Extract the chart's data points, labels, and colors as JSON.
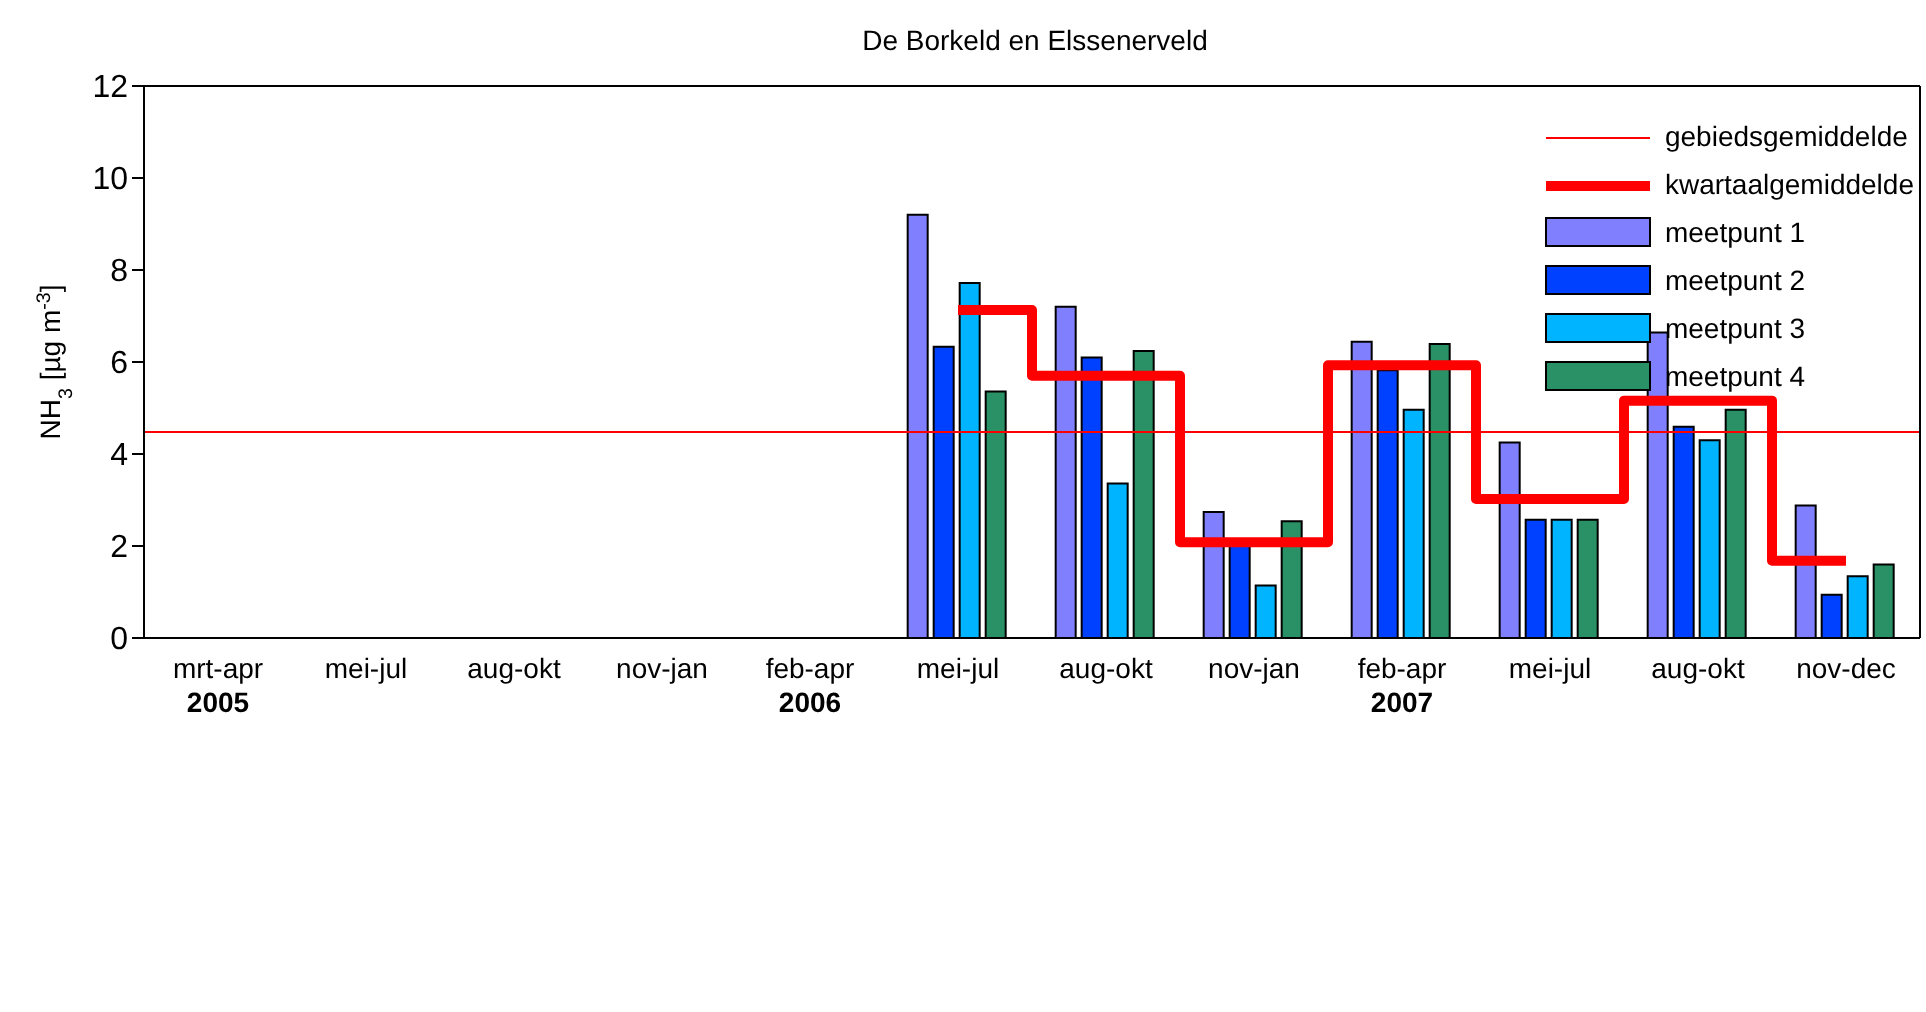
{
  "chart_data": {
    "type": "bar",
    "title": "De Borkeld en Elssenerveld",
    "ylabel": "NH$_{3}$ [µg m$^{-3}$]",
    "categories": [
      "mrt-apr\n2005",
      "mei-jul",
      "aug-okt",
      "nov-jan",
      "feb-apr\n2006",
      "mei-jul",
      "aug-okt",
      "nov-jan",
      "feb-apr\n2007",
      "mei-jul",
      "aug-okt",
      "nov-dec"
    ],
    "series": [
      {
        "name": "kwartaalgemiddelde",
        "type": "step",
        "color": "#ff0000",
        "values": [
          null,
          null,
          null,
          null,
          null,
          7.13,
          5.7,
          2.08,
          5.93,
          3.02,
          5.16,
          1.68
        ]
      },
      {
        "name": "meetpunt 1",
        "color": "#8080ff",
        "values": [
          null,
          null,
          null,
          null,
          null,
          9.2,
          7.2,
          2.74,
          6.44,
          4.25,
          6.64,
          2.88
        ]
      },
      {
        "name": "meetpunt 2",
        "color": "#0040ff",
        "values": [
          null,
          null,
          null,
          null,
          null,
          6.33,
          6.1,
          2.1,
          5.82,
          2.57,
          4.59,
          0.94
        ]
      },
      {
        "name": "meetpunt 3",
        "color": "#00b4ff",
        "values": [
          null,
          null,
          null,
          null,
          null,
          7.72,
          3.36,
          1.14,
          4.96,
          2.57,
          4.3,
          1.34
        ]
      },
      {
        "name": "meetpunt 4",
        "color": "#2a9065",
        "values": [
          null,
          null,
          null,
          null,
          null,
          5.36,
          6.24,
          2.54,
          6.39,
          2.57,
          4.96,
          1.6
        ]
      }
    ],
    "ref_lines": [
      {
        "axis": "y",
        "value": 4.48,
        "label": "gebiedsgemiddelde",
        "color": "#ff0000"
      }
    ],
    "ylim": [
      0,
      12
    ],
    "yticks": [
      0,
      2,
      4,
      6,
      8,
      10,
      12
    ],
    "legend": "top right"
  }
}
